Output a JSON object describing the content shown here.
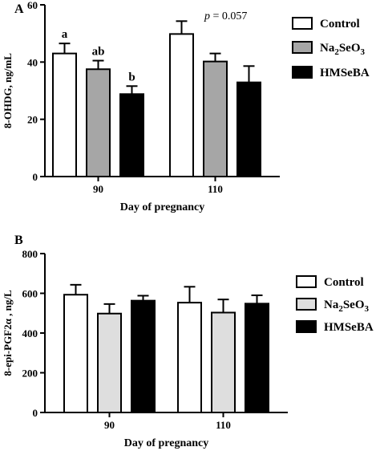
{
  "chart_data": [
    {
      "type": "bar",
      "panel_label": "A",
      "title": "",
      "xlabel": "Day of pregnancy",
      "ylabel": "8-OHDG, ng/mL",
      "ylim": [
        0,
        60
      ],
      "yticks": [
        "0",
        "20",
        "40",
        "60"
      ],
      "categories": [
        "90",
        "110"
      ],
      "annotation": "p = 0.057",
      "legend_position": "top-right",
      "series": [
        {
          "name": "Control",
          "sub": "",
          "tail": "",
          "color": "#ffffff",
          "values": [
            43.0,
            49.8
          ],
          "errors": [
            3.5,
            4.5
          ],
          "labels": [
            "a",
            ""
          ]
        },
        {
          "name": "Na",
          "sub": "2",
          "tail": "SeO",
          "sub2": "3",
          "color": "#a6a6a6",
          "values": [
            37.5,
            40.2
          ],
          "errors": [
            3.0,
            2.8
          ],
          "labels": [
            "ab",
            ""
          ]
        },
        {
          "name": "HMSeBA",
          "sub": "",
          "tail": "",
          "color": "#000000",
          "values": [
            28.8,
            32.9
          ],
          "errors": [
            2.8,
            5.7
          ],
          "labels": [
            "b",
            ""
          ]
        }
      ]
    },
    {
      "type": "bar",
      "panel_label": "B",
      "title": "",
      "xlabel": "Day of pregnancy",
      "ylabel": "8-epi-PGF2α , ng/L",
      "ylim": [
        0,
        800
      ],
      "yticks": [
        "0",
        "200",
        "400",
        "600",
        "800"
      ],
      "categories": [
        "90",
        "110"
      ],
      "annotation": "",
      "legend_position": "top-right",
      "series": [
        {
          "name": "Control",
          "sub": "",
          "tail": "",
          "color": "#ffffff",
          "values": [
            593,
            553
          ],
          "errors": [
            50,
            80
          ],
          "labels": [
            "",
            ""
          ]
        },
        {
          "name": "Na",
          "sub": "2",
          "tail": "SeO",
          "sub2": "3",
          "color": "#dedede",
          "values": [
            498,
            503
          ],
          "errors": [
            48,
            66
          ],
          "labels": [
            "",
            ""
          ]
        },
        {
          "name": "HMSeBA",
          "sub": "",
          "tail": "",
          "color": "#000000",
          "values": [
            563,
            548
          ],
          "errors": [
            25,
            42
          ],
          "labels": [
            "",
            ""
          ]
        }
      ]
    }
  ]
}
